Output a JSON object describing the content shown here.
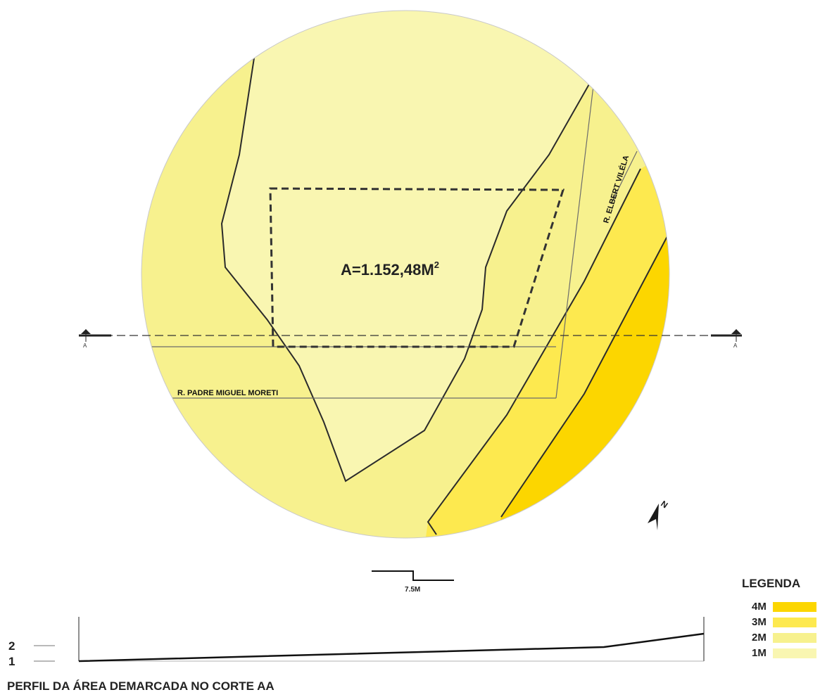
{
  "map": {
    "area_label": "A=1.152,48M",
    "area_superscript": "2",
    "street_padre": "R. PADRE MIGUEL MORETI",
    "street_elbert": "R. ELBERT VILÉLA",
    "section_marker_left": "A",
    "section_marker_right": "A",
    "north_label": "N",
    "scale_label": "7.5M",
    "colors": {
      "zone_1m": "#f9f6b1",
      "zone_2m": "#f7f18e",
      "zone_3m": "#fde94f",
      "zone_4m": "#fcd600",
      "lines": "#2b2b2b"
    }
  },
  "legend": {
    "title": "LEGENDA",
    "items": [
      {
        "label": "4M",
        "color": "#fcd600"
      },
      {
        "label": "3M",
        "color": "#fde94f"
      },
      {
        "label": "2M",
        "color": "#f7f18e"
      },
      {
        "label": "1M",
        "color": "#f9f6b1"
      }
    ]
  },
  "profile": {
    "title": "PERFIL DA ÁREA DEMARCADA NO  CORTE AA",
    "y_labels": [
      "2",
      "1"
    ]
  }
}
